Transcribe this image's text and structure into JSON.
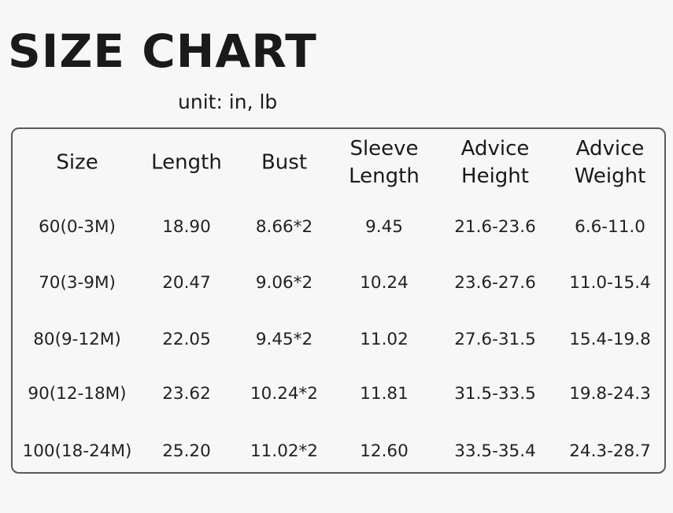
{
  "title": "SIZE CHART",
  "unit": "unit: in, lb",
  "table": {
    "headers": [
      [
        "Size"
      ],
      [
        "Length"
      ],
      [
        "Bust"
      ],
      [
        "Sleeve",
        "Length"
      ],
      [
        "Advice",
        "Height"
      ],
      [
        "Advice",
        "Weight"
      ]
    ],
    "rows": [
      [
        "60(0-3M)",
        "18.90",
        "8.66*2",
        "9.45",
        "21.6-23.6",
        "6.6-11.0"
      ],
      [
        "70(3-9M)",
        "20.47",
        "9.06*2",
        "10.24",
        "23.6-27.6",
        "11.0-15.4"
      ],
      [
        "80(9-12M)",
        "22.05",
        "9.45*2",
        "11.02",
        "27.6-31.5",
        "15.4-19.8"
      ],
      [
        "90(12-18M)",
        "23.62",
        "10.24*2",
        "11.81",
        "31.5-33.5",
        "19.8-24.3"
      ],
      [
        "100(18-24M)",
        "25.20",
        "11.02*2",
        "12.60",
        "33.5-35.4",
        "24.3-28.7"
      ]
    ]
  }
}
